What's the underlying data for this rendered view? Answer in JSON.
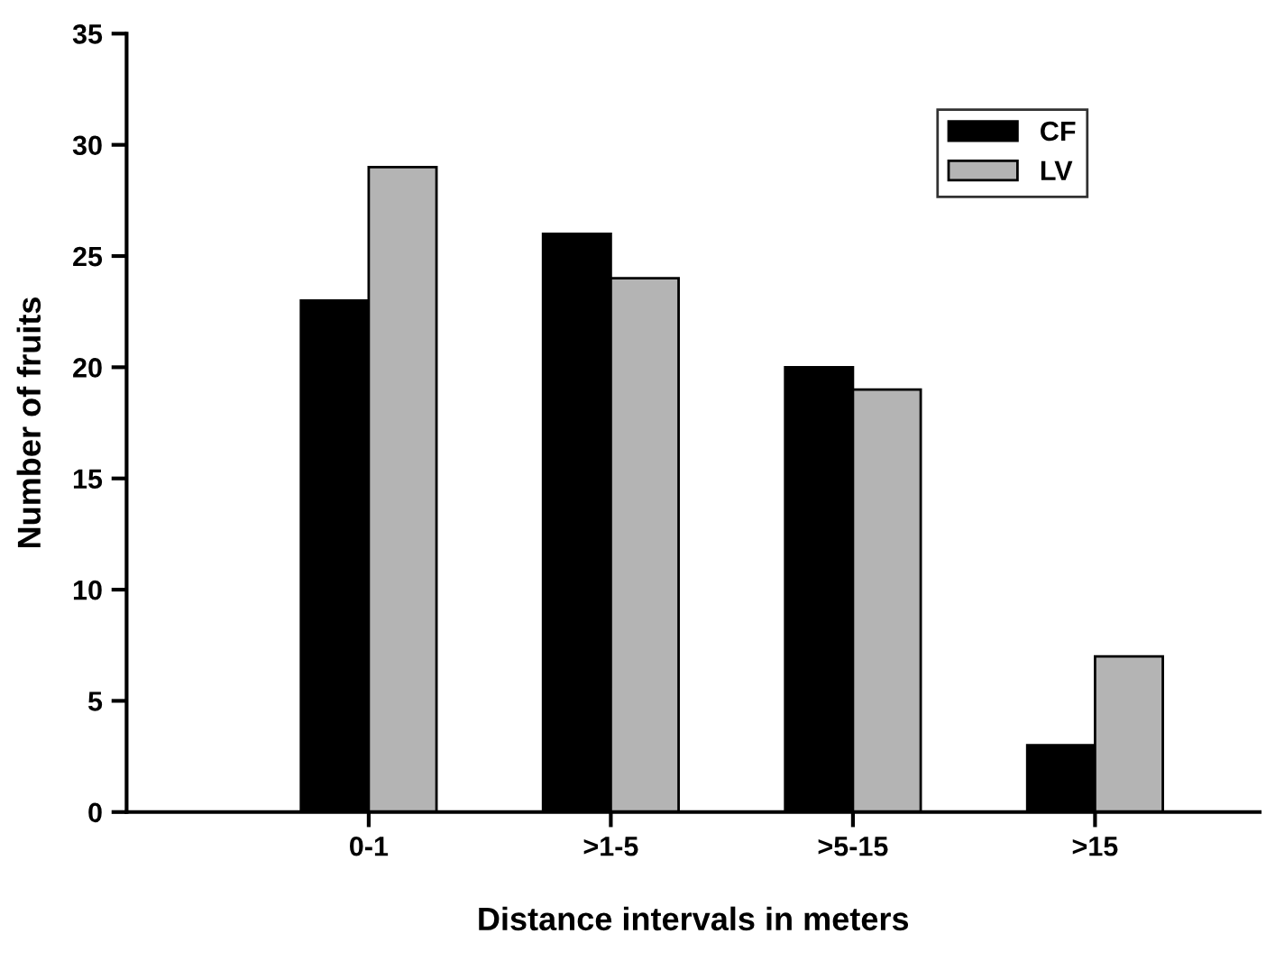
{
  "chart_data": {
    "type": "bar",
    "xlabel": "Distance intervals in meters",
    "ylabel": "Number of fruits",
    "categories": [
      "0-1",
      ">1-5",
      ">5-15",
      ">15"
    ],
    "series": [
      {
        "name": "CF",
        "color": "#000000",
        "values": [
          23,
          26,
          20,
          3
        ]
      },
      {
        "name": "LV",
        "color": "#b4b4b4",
        "values": [
          29,
          24,
          19,
          7
        ]
      }
    ],
    "ylim": [
      0,
      35
    ],
    "yticks": [
      0,
      5,
      10,
      15,
      20,
      25,
      30,
      35
    ],
    "grid": false,
    "legend": "top right"
  }
}
